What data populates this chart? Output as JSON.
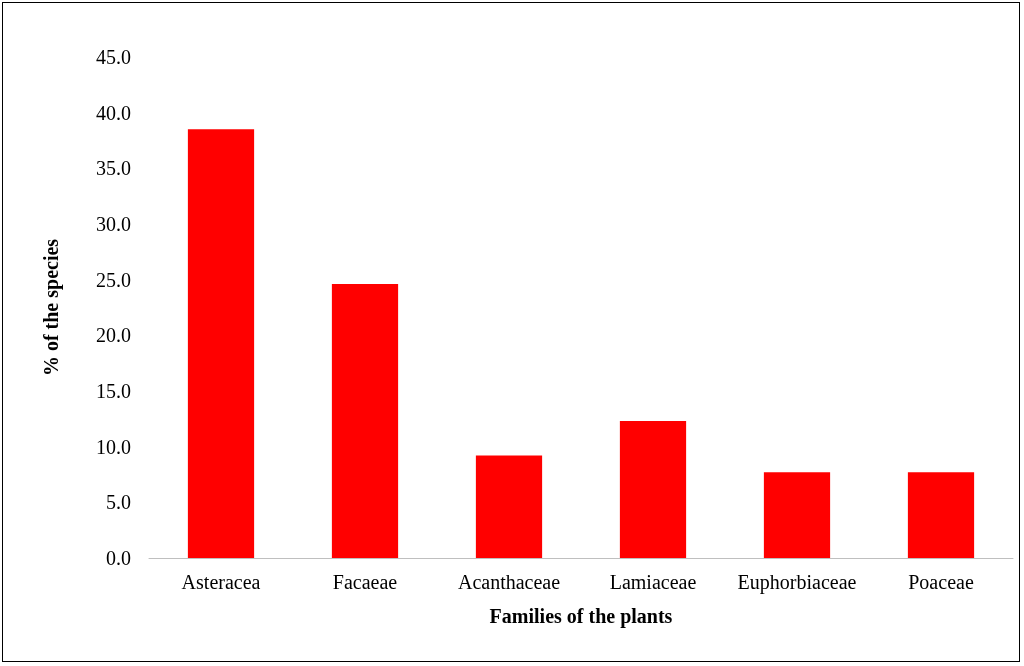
{
  "chart_data": {
    "type": "bar",
    "xlabel": "Families of the plants",
    "ylabel": "% of the species",
    "categories": [
      "Asteracea",
      "Facaeae",
      "Acanthaceae",
      "Lamiaceae",
      "Euphorbiaceae",
      "Poaceae"
    ],
    "values": [
      38.5,
      24.6,
      9.2,
      12.3,
      7.7,
      7.7
    ],
    "color": "#ff0000",
    "ylim": [
      0,
      45
    ],
    "yticks": [
      {
        "value": 0,
        "label": "0.0"
      },
      {
        "value": 5,
        "label": "5.0"
      },
      {
        "value": 10,
        "label": "10.0"
      },
      {
        "value": 15,
        "label": "15.0"
      },
      {
        "value": 20,
        "label": "20.0"
      },
      {
        "value": 25,
        "label": "25.0"
      },
      {
        "value": 30,
        "label": "30.0"
      },
      {
        "value": 35,
        "label": "35.0"
      },
      {
        "value": 40,
        "label": "40.0"
      },
      {
        "value": 45,
        "label": "45.0"
      }
    ],
    "grid": false
  }
}
